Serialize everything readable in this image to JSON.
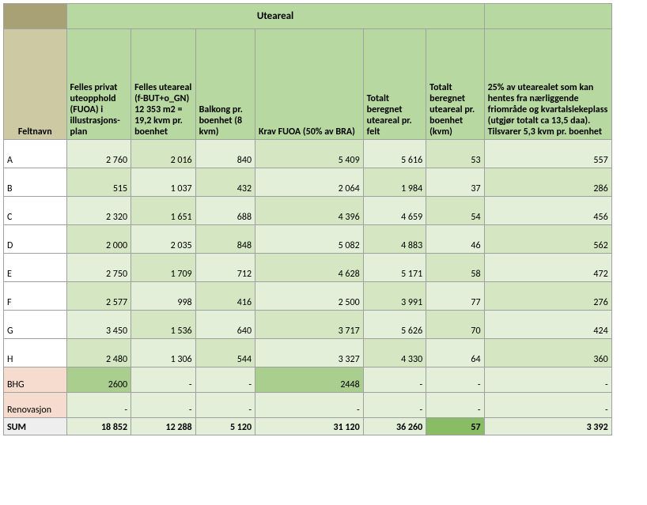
{
  "header": {
    "topSpan": "Uteareal",
    "feltnavn": "Feltnavn",
    "cols": [
      "Felles privat uteopphold (FUOA) i illustrasjons­plan",
      "Felles uteareal (f-BUT+o_GN) 12 353 m2 = 19,2 kvm pr. boenhet",
      "Balkong pr. boenhet (8 kvm)",
      "Krav FUOA (50% av BRA)",
      "Totalt beregnet uteareal pr. felt",
      "Totalt beregnet uteareal pr. boenhet (kvm)",
      "25% av utearealet som kan hentes fra nærliggende friområde og kvartalslekeplass (utgjør totalt ca 13,5 daa). Tilsvarer 5,3 kvm pr. boenhet"
    ]
  },
  "rows": [
    {
      "label": "A",
      "v": [
        "2 760",
        "2 016",
        "840",
        "5 409",
        "5 616",
        "53",
        "557"
      ]
    },
    {
      "label": "B",
      "v": [
        "515",
        "1 037",
        "432",
        "2 064",
        "1 984",
        "37",
        "286"
      ]
    },
    {
      "label": "C",
      "v": [
        "2 320",
        "1 651",
        "688",
        "4 396",
        "4 659",
        "54",
        "456"
      ]
    },
    {
      "label": "D",
      "v": [
        "2 000",
        "2 035",
        "848",
        "5 082",
        "4 883",
        "46",
        "562"
      ]
    },
    {
      "label": "E",
      "v": [
        "2 750",
        "1 709",
        "712",
        "4 628",
        "5 171",
        "58",
        "472"
      ]
    },
    {
      "label": "F",
      "v": [
        "2 577",
        "998",
        "416",
        "2 500",
        "3 991",
        "77",
        "276"
      ]
    },
    {
      "label": "G",
      "v": [
        "3 450",
        "1 536",
        "640",
        "3 717",
        "5 626",
        "70",
        "424"
      ]
    },
    {
      "label": "H",
      "v": [
        "2 480",
        "1 306",
        "544",
        "3 327",
        "4 330",
        "64",
        "360"
      ]
    }
  ],
  "bhg": {
    "label": "BHG",
    "v": [
      "2600",
      "-",
      "-",
      "2448",
      "-",
      "-",
      "-"
    ]
  },
  "renov": {
    "label": "Renovasjon",
    "v": [
      "-",
      "-",
      "-",
      "-",
      "-",
      "-",
      "-"
    ]
  },
  "sum": {
    "label": "SUM",
    "v": [
      "18 852",
      "12 288",
      "5 120",
      "31 120",
      "36 260",
      "57",
      "3 392"
    ]
  },
  "colors": {
    "cornerTop": "#a8a175",
    "cornerHeader": "#cdc9a3",
    "headerGreen": "#b7d8a1",
    "dataLight": "#e3efd9",
    "dataMed": "#d4e6c2",
    "bhgLabel": "#f5dccf",
    "bhgGreen": "#a9ce8e",
    "sumHighlight": "#88bc65",
    "greyLabel": "#eeeeee",
    "border": "#a0a0a0"
  }
}
